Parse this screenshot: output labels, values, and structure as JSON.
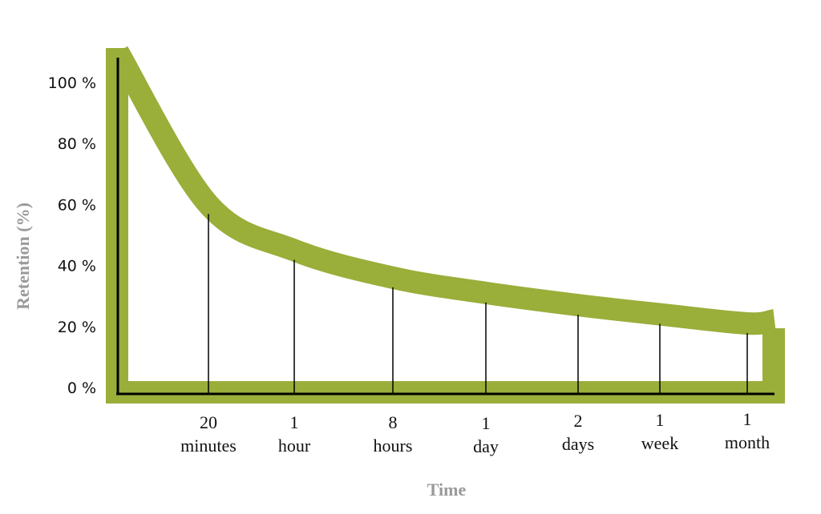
{
  "chart_data": {
    "type": "line",
    "title": "",
    "xlabel": "Time",
    "ylabel": "Retention (%)",
    "ylim": [
      0,
      100
    ],
    "yticks": [
      "0 %",
      "20 %",
      "40 %",
      "60 %",
      "80 %",
      "100 %"
    ],
    "categories": [
      {
        "line1": "20",
        "line2": "minutes"
      },
      {
        "line1": "1",
        "line2": "hour"
      },
      {
        "line1": "8",
        "line2": "hours"
      },
      {
        "line1": "1",
        "line2": "day"
      },
      {
        "line1": "2",
        "line2": "days"
      },
      {
        "line1": "1",
        "line2": "week"
      },
      {
        "line1": "1",
        "line2": "month"
      }
    ],
    "values": [
      60,
      45,
      36,
      31,
      27,
      24,
      21
    ],
    "start_value": 110,
    "grid": false,
    "colors": {
      "curve": "#9aae3a",
      "axis": "#000000",
      "axis_title": "#9a9a9a"
    }
  }
}
